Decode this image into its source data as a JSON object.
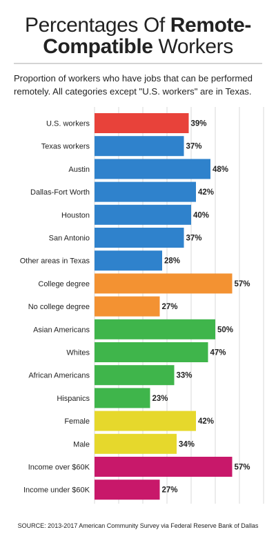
{
  "title": {
    "line1": "Percentages Of",
    "line1_bold": "Remote-",
    "line2_bold": "Compatible",
    "line2": "Workers"
  },
  "subtitle": "Proportion of workers who have jobs that can be performed remotely. All categories except \"U.S. workers\" are in Texas.",
  "source": "SOURCE: 2013-2017 American Community Survey via Federal Reserve Bank of Dallas",
  "colors": {
    "us": "#e8423a",
    "geography": "#2f82cc",
    "education": "#f39232",
    "race": "#3fb54b",
    "gender": "#e6d82c",
    "income": "#c8186a"
  },
  "chart_data": {
    "type": "bar",
    "orientation": "horizontal",
    "value_suffix": "%",
    "xlim": [
      0,
      75
    ],
    "grid": true,
    "categories": [
      "U.S. workers",
      "Texas workers",
      "Austin",
      "Dallas-Fort Worth",
      "Houston",
      "San Antonio",
      "Other areas in Texas",
      "College degree",
      "No college degree",
      "Asian Americans",
      "Whites",
      "African Americans",
      "Hispanics",
      "Female",
      "Male",
      "Income over $60K",
      "Income under $60K"
    ],
    "values": [
      39,
      37,
      48,
      42,
      40,
      37,
      28,
      57,
      27,
      50,
      47,
      33,
      23,
      42,
      34,
      57,
      27
    ],
    "colors": [
      "#e8423a",
      "#2f82cc",
      "#2f82cc",
      "#2f82cc",
      "#2f82cc",
      "#2f82cc",
      "#2f82cc",
      "#f39232",
      "#f39232",
      "#3fb54b",
      "#3fb54b",
      "#3fb54b",
      "#3fb54b",
      "#e6d82c",
      "#e6d82c",
      "#c8186a",
      "#c8186a"
    ]
  }
}
